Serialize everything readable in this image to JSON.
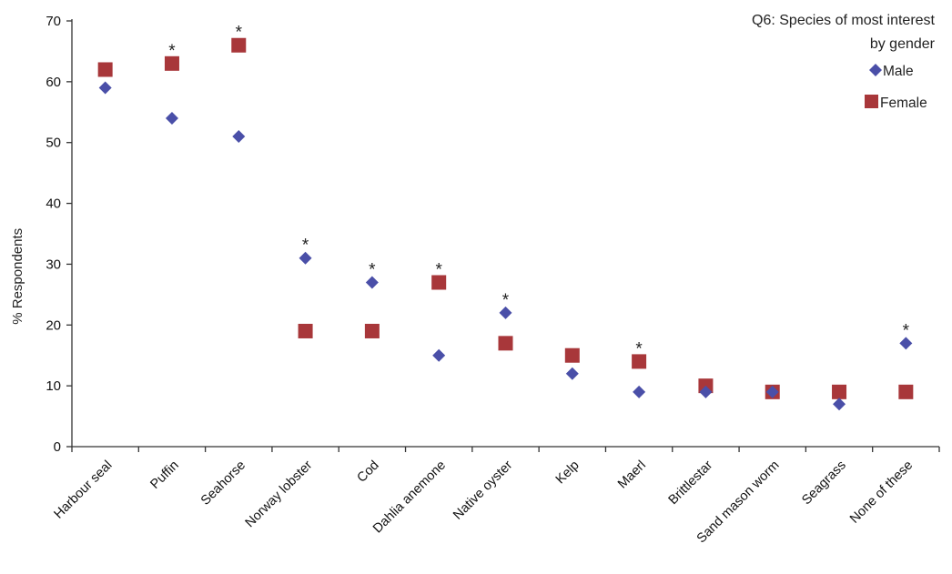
{
  "chart_data": {
    "type": "scatter",
    "title": "Q6: Species of most interest by gender",
    "title_lines": [
      "Q6: Species of most interest",
      "by gender"
    ],
    "xlabel": "",
    "ylabel": "% Respondents",
    "ylim": [
      0,
      70
    ],
    "yticks": [
      0,
      10,
      20,
      30,
      40,
      50,
      60,
      70
    ],
    "grid": false,
    "legend_position": "top-right",
    "categories": [
      "Harbour seal",
      "Puffin",
      "Seahorse",
      "Norway lobster",
      "Cod",
      "Dahlia anemone",
      "Native oyster",
      "Kelp",
      "Maerl",
      "Brittlestar",
      "Sand mason worm",
      "Seagrass",
      "None of these"
    ],
    "series": [
      {
        "name": "Male",
        "marker": "diamond",
        "color": "#4a4fa8",
        "values": [
          59,
          54,
          51,
          31,
          27,
          15,
          22,
          12,
          9,
          9,
          9,
          7,
          17
        ]
      },
      {
        "name": "Female",
        "marker": "square",
        "color": "#a8373a",
        "values": [
          62,
          63,
          66,
          19,
          19,
          27,
          17,
          15,
          14,
          10,
          9,
          9,
          9
        ]
      }
    ],
    "significance_marker": "*",
    "significant": [
      false,
      true,
      true,
      true,
      true,
      true,
      true,
      false,
      true,
      false,
      false,
      false,
      true
    ]
  }
}
